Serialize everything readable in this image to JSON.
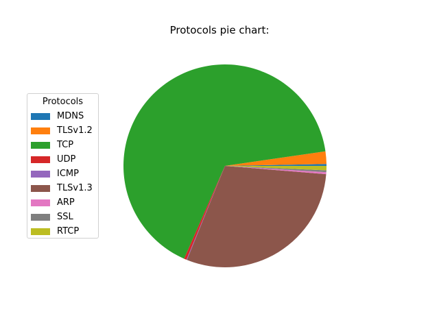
{
  "chart_data": {
    "type": "pie",
    "title": "Protocols pie chart:",
    "legend": {
      "title": "Protocols",
      "placement": "left"
    },
    "slices": [
      {
        "label": "MDNS",
        "value": 0.3,
        "color": "#1f77b4"
      },
      {
        "label": "TLSv1.2",
        "value": 2.0,
        "color": "#ff7f0e"
      },
      {
        "label": "TCP",
        "value": 66.1,
        "color": "#2ca02c"
      },
      {
        "label": "UDP",
        "value": 0.4,
        "color": "#d62728"
      },
      {
        "label": "ICMP",
        "value": 0.1,
        "color": "#9467bd"
      },
      {
        "label": "TLSv1.3",
        "value": 29.8,
        "color": "#8c564b"
      },
      {
        "label": "ARP",
        "value": 0.3,
        "color": "#e377c2"
      },
      {
        "label": "SSL",
        "value": 0.3,
        "color": "#7f7f7f"
      },
      {
        "label": "RTCP",
        "value": 0.7,
        "color": "#bcbd22"
      }
    ]
  }
}
